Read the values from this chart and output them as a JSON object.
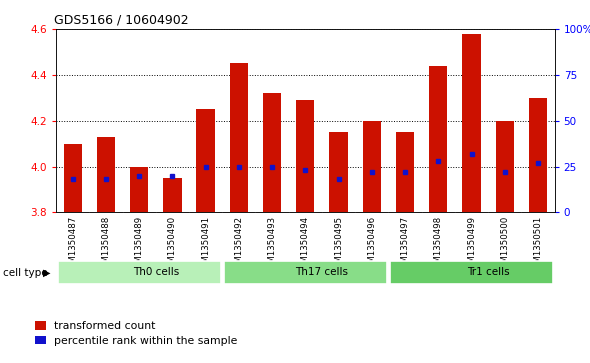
{
  "title": "GDS5166 / 10604902",
  "samples": [
    "GSM1350487",
    "GSM1350488",
    "GSM1350489",
    "GSM1350490",
    "GSM1350491",
    "GSM1350492",
    "GSM1350493",
    "GSM1350494",
    "GSM1350495",
    "GSM1350496",
    "GSM1350497",
    "GSM1350498",
    "GSM1350499",
    "GSM1350500",
    "GSM1350501"
  ],
  "transformed_counts": [
    4.1,
    4.13,
    4.0,
    3.95,
    4.25,
    4.45,
    4.32,
    4.29,
    4.15,
    4.2,
    4.15,
    4.44,
    4.58,
    4.2,
    4.3
  ],
  "percentile_ranks": [
    18,
    18,
    20,
    20,
    25,
    25,
    25,
    23,
    18,
    22,
    22,
    28,
    32,
    22,
    27
  ],
  "cell_types": [
    {
      "label": "Th0 cells",
      "start": 0,
      "end": 5,
      "color": "#b8f0b8"
    },
    {
      "label": "Th17 cells",
      "start": 5,
      "end": 10,
      "color": "#88dd88"
    },
    {
      "label": "Tr1 cells",
      "start": 10,
      "end": 15,
      "color": "#66cc66"
    }
  ],
  "ylim_left": [
    3.8,
    4.6
  ],
  "ylim_right": [
    0,
    100
  ],
  "bar_color": "#cc1100",
  "percentile_color": "#1111cc",
  "bar_bottom": 3.8,
  "bar_width": 0.55,
  "xtick_bg_color": "#d4d4d4",
  "plot_bg_color": "#ffffff",
  "legend_labels": [
    "transformed count",
    "percentile rank within the sample"
  ]
}
